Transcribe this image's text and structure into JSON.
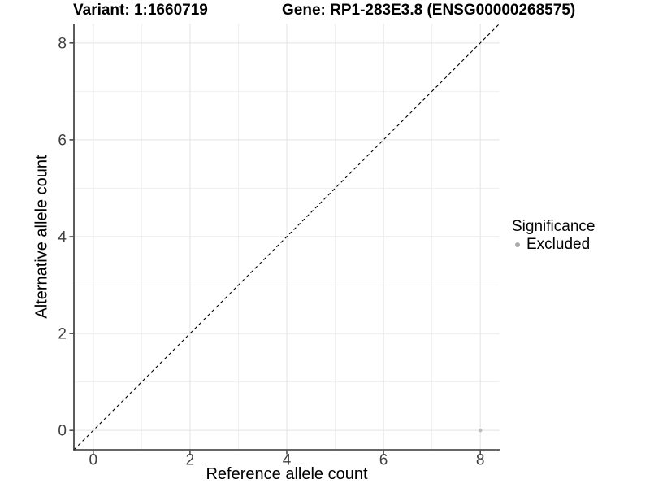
{
  "chart_data": {
    "type": "scatter",
    "title_variant": "Variant: 1:1660719",
    "title_gene": "Gene: RP1-283E3.8 (ENSG00000268575)",
    "xlabel": "Reference allele count",
    "ylabel": "Alternative allele count",
    "xlim": [
      -0.4,
      8.4
    ],
    "ylim": [
      -0.4,
      8.4
    ],
    "x_ticks": [
      0,
      2,
      4,
      6,
      8
    ],
    "y_ticks": [
      0,
      2,
      4,
      6,
      8
    ],
    "x_minor_ticks": [
      1,
      3,
      5,
      7
    ],
    "y_minor_ticks": [
      1,
      3,
      5,
      7
    ],
    "grid": "major and minor, light grey on white",
    "points": [
      {
        "x": 8,
        "y": 0,
        "series": "Excluded"
      }
    ],
    "identity_line": {
      "style": "dashed",
      "x1": -0.4,
      "y1": -0.4,
      "x2": 8.4,
      "y2": 8.4
    },
    "legend": {
      "title": "Significance",
      "position": "right",
      "items": [
        {
          "label": "Excluded",
          "color": "#aaaaaa"
        }
      ]
    },
    "colors": {
      "background": "#ffffff",
      "point": "#bdbdbd",
      "grid_major": "#e3e3e3",
      "grid_minor": "#f0f0f0",
      "axis_line": "#333333",
      "tick_mark": "#333333",
      "tick_label": "#404040",
      "identity_line": "#000000"
    }
  }
}
